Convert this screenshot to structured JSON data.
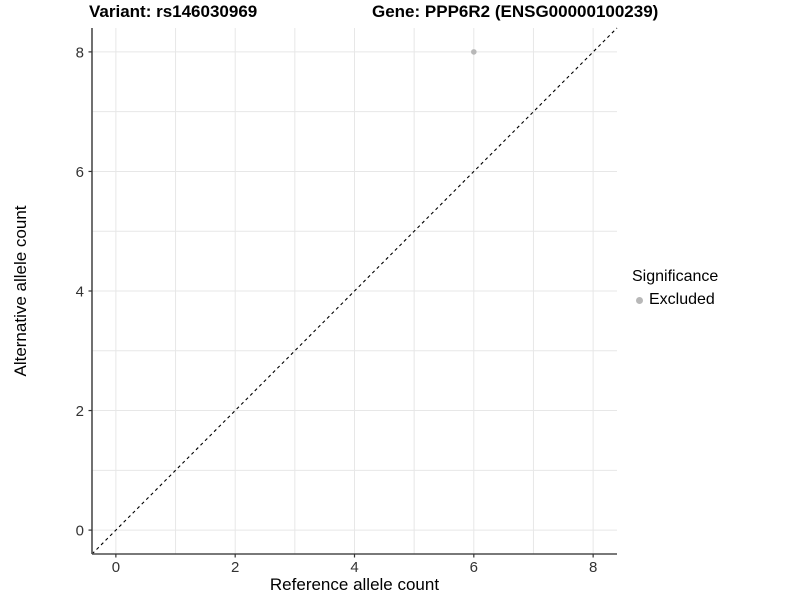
{
  "chart_data": {
    "type": "scatter",
    "title_left": "Variant: rs146030969",
    "title_right": "Gene: PPP6R2 (ENSG00000100239)",
    "xlabel": "Reference allele count",
    "ylabel": "Alternative allele count",
    "xlim": [
      -0.4,
      8.4
    ],
    "ylim": [
      -0.4,
      8.4
    ],
    "xticks": [
      0,
      2,
      4,
      6,
      8
    ],
    "yticks": [
      0,
      2,
      4,
      6,
      8
    ],
    "grid": {
      "show": true,
      "interval": 1,
      "min": 0,
      "max": 8
    },
    "points": [
      {
        "x": 6,
        "y": 8,
        "series": "Excluded"
      }
    ],
    "identity_line": {
      "slope": 1,
      "intercept": 0,
      "style": "dashed"
    },
    "legend": {
      "title": "Significance",
      "position": "right",
      "items": [
        {
          "label": "Excluded",
          "color": "#b8b8b8"
        }
      ]
    },
    "colors": {
      "point": "#b8b8b8",
      "grid": "#e7e7e7",
      "axis": "#4d4d4d",
      "tick_text": "#333333",
      "line": "#000000"
    }
  }
}
